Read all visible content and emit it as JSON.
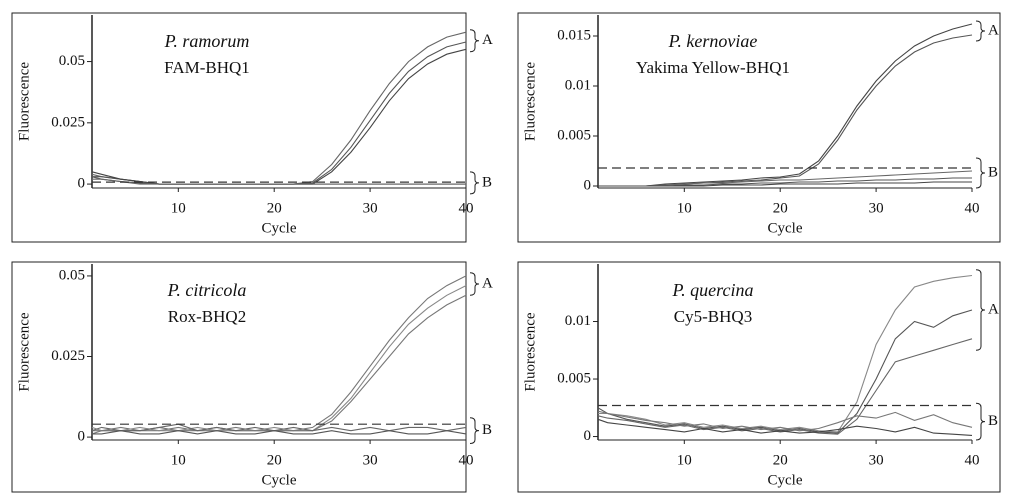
{
  "chart_data": [
    {
      "type": "line",
      "title": "P. ramorum",
      "subtitle": "FAM-BHQ1",
      "xlabel": "Cycle",
      "ylabel": "Fluorescence",
      "x": [
        1,
        2,
        4,
        6,
        8,
        10,
        12,
        14,
        16,
        18,
        20,
        22,
        24,
        26,
        28,
        30,
        32,
        34,
        36,
        38,
        40
      ],
      "xlim": [
        1,
        40
      ],
      "xticks": [
        10,
        20,
        30,
        40
      ],
      "ylim": [
        -0.0016,
        0.069
      ],
      "yticks": [
        0,
        0.025,
        0.05
      ],
      "threshold": 0.0008,
      "series": [
        {
          "color": "#666",
          "values": [
            0.004,
            0.003,
            0.002,
            0.001,
            0,
            0,
            0,
            0,
            0,
            0,
            0,
            0,
            0.001,
            0.008,
            0.018,
            0.03,
            0.041,
            0.05,
            0.056,
            0.06,
            0.062
          ]
        },
        {
          "color": "#555",
          "values": [
            0.003,
            0.003,
            0.002,
            0.001,
            0,
            0,
            0,
            0,
            0,
            0,
            0,
            0,
            0.0005,
            0.006,
            0.015,
            0.026,
            0.037,
            0.046,
            0.052,
            0.056,
            0.058
          ]
        },
        {
          "color": "#444",
          "values": [
            0.005,
            0.004,
            0.002,
            0.001,
            0,
            0,
            0,
            0,
            0,
            0,
            0,
            0,
            0,
            0.005,
            0.013,
            0.023,
            0.034,
            0.043,
            0.049,
            0.053,
            0.055
          ]
        },
        {
          "color": "#555",
          "values": [
            0.003,
            0.002,
            0.001,
            0.0005,
            0,
            0,
            0,
            0,
            0,
            0,
            0,
            0,
            0,
            0,
            0,
            0,
            0,
            0,
            0,
            0,
            0
          ]
        },
        {
          "color": "#666",
          "values": [
            0.002,
            0.002,
            0.001,
            0,
            0,
            0,
            0,
            0,
            0,
            0,
            0,
            0,
            0,
            0,
            0,
            0,
            0,
            0,
            0,
            0,
            0
          ]
        }
      ],
      "annotations": [
        {
          "text": "A",
          "range": [
            0.054,
            0.063
          ]
        },
        {
          "text": "B",
          "range": [
            -0.004,
            0.005
          ]
        }
      ]
    },
    {
      "type": "line",
      "title": "P. kernoviae",
      "subtitle": "Yakima Yellow-BHQ1",
      "xlabel": "Cycle",
      "ylabel": "Fluorescence",
      "x": [
        1,
        2,
        4,
        6,
        8,
        10,
        12,
        14,
        16,
        18,
        20,
        22,
        24,
        26,
        28,
        30,
        32,
        34,
        36,
        38,
        40
      ],
      "xlim": [
        1,
        40
      ],
      "xticks": [
        10,
        20,
        30,
        40
      ],
      "ylim": [
        -0.0002,
        0.0171
      ],
      "yticks": [
        0,
        0.005,
        0.01,
        0.015
      ],
      "threshold": 0.0018,
      "series": [
        {
          "color": "#444",
          "values": [
            0,
            0,
            0,
            0,
            0.0002,
            0.0003,
            0.0004,
            0.0005,
            0.0006,
            0.0008,
            0.0009,
            0.0012,
            0.0025,
            0.005,
            0.008,
            0.0105,
            0.0125,
            0.014,
            0.015,
            0.0157,
            0.0162
          ]
        },
        {
          "color": "#555",
          "values": [
            0,
            0,
            0,
            0,
            0.0001,
            0.0002,
            0.0003,
            0.0004,
            0.0005,
            0.0006,
            0.0008,
            0.001,
            0.0022,
            0.0046,
            0.0076,
            0.01,
            0.012,
            0.0134,
            0.0143,
            0.0148,
            0.0151
          ]
        },
        {
          "color": "#666",
          "values": [
            0,
            0,
            0,
            0,
            0.0001,
            0.0002,
            0.0003,
            0.0003,
            0.0004,
            0.0005,
            0.0006,
            0.0006,
            0.0007,
            0.0008,
            0.0009,
            0.001,
            0.0011,
            0.0012,
            0.0013,
            0.0014,
            0.0015
          ]
        },
        {
          "color": "#555",
          "values": [
            0,
            0,
            0,
            0,
            0,
            0.0001,
            0.0001,
            0.0002,
            0.0002,
            0.0003,
            0.0003,
            0.0004,
            0.0004,
            0.0005,
            0.0005,
            0.0006,
            0.0006,
            0.0007,
            0.0007,
            0.0008,
            0.0008
          ]
        },
        {
          "color": "#444",
          "values": [
            0,
            0,
            0,
            0,
            0,
            0,
            0,
            0.0001,
            0.0001,
            0.0001,
            0.0002,
            0.0002,
            0.0002,
            0.0002,
            0.0003,
            0.0003,
            0.0003,
            0.0003,
            0.0004,
            0.0004,
            0.0004
          ]
        }
      ],
      "annotations": [
        {
          "text": "A",
          "range": [
            0.0145,
            0.0165
          ]
        },
        {
          "text": "B",
          "range": [
            -0.0002,
            0.0028
          ]
        }
      ]
    },
    {
      "type": "line",
      "title": "P. citricola",
      "subtitle": "Rox-BHQ2",
      "xlabel": "Cycle",
      "ylabel": "Fluorescence",
      "x": [
        1,
        2,
        4,
        6,
        8,
        10,
        12,
        14,
        16,
        18,
        20,
        22,
        24,
        26,
        28,
        30,
        32,
        34,
        36,
        38,
        40
      ],
      "xlim": [
        1,
        40
      ],
      "xticks": [
        10,
        20,
        30,
        40
      ],
      "ylim": [
        -0.0009,
        0.0537
      ],
      "yticks": [
        0,
        0.025,
        0.05
      ],
      "threshold": 0.004,
      "series": [
        {
          "color": "#777",
          "values": [
            0.002,
            0.002,
            0.003,
            0.002,
            0.002,
            0.003,
            0.002,
            0.002,
            0.003,
            0.002,
            0.002,
            0.002,
            0.003,
            0.007,
            0.014,
            0.022,
            0.03,
            0.037,
            0.043,
            0.047,
            0.05
          ]
        },
        {
          "color": "#888",
          "values": [
            0.003,
            0.002,
            0.002,
            0.003,
            0.002,
            0.002,
            0.003,
            0.002,
            0.002,
            0.002,
            0.003,
            0.002,
            0.002,
            0.006,
            0.012,
            0.02,
            0.028,
            0.035,
            0.04,
            0.044,
            0.047
          ]
        },
        {
          "color": "#777",
          "values": [
            0.001,
            0.002,
            0.002,
            0.002,
            0.003,
            0.002,
            0.002,
            0.003,
            0.002,
            0.002,
            0.002,
            0.002,
            0.002,
            0.005,
            0.011,
            0.018,
            0.025,
            0.032,
            0.037,
            0.041,
            0.044
          ]
        },
        {
          "color": "#666",
          "values": [
            0.002,
            0.003,
            0.002,
            0.002,
            0.003,
            0.004,
            0.002,
            0.003,
            0.002,
            0.003,
            0.002,
            0.003,
            0.002,
            0.003,
            0.002,
            0.003,
            0.002,
            0.003,
            0.003,
            0.002,
            0.003
          ]
        },
        {
          "color": "#555",
          "values": [
            0.001,
            0.001,
            0.002,
            0.001,
            0.001,
            0.002,
            0.001,
            0.002,
            0.001,
            0.001,
            0.002,
            0.001,
            0.001,
            0.002,
            0.001,
            0.001,
            0.002,
            0.001,
            0.001,
            0.002,
            0.001
          ]
        }
      ],
      "annotations": [
        {
          "text": "A",
          "range": [
            0.044,
            0.051
          ]
        },
        {
          "text": "B",
          "range": [
            -0.002,
            0.006
          ]
        }
      ]
    },
    {
      "type": "line",
      "title": "P. quercina",
      "subtitle": "Cy5-BHQ3",
      "xlabel": "Cycle",
      "ylabel": "Fluorescence",
      "x": [
        1,
        2,
        4,
        6,
        8,
        10,
        12,
        14,
        16,
        18,
        20,
        22,
        24,
        26,
        28,
        30,
        32,
        34,
        36,
        38,
        40
      ],
      "xlim": [
        1,
        40
      ],
      "xticks": [
        10,
        20,
        30,
        40
      ],
      "ylim": [
        -0.0003,
        0.015
      ],
      "yticks": [
        0,
        0.005,
        0.01
      ],
      "threshold": 0.0027,
      "series": [
        {
          "color": "#888",
          "values": [
            0.002,
            0.002,
            0.0018,
            0.0015,
            0.001,
            0.0012,
            0.0008,
            0.001,
            0.0007,
            0.0009,
            0.0006,
            0.0008,
            0.0005,
            0.0004,
            0.003,
            0.008,
            0.011,
            0.013,
            0.0135,
            0.0138,
            0.014
          ]
        },
        {
          "color": "#555",
          "values": [
            0.0025,
            0.002,
            0.0015,
            0.0012,
            0.0009,
            0.0011,
            0.0007,
            0.0009,
            0.0006,
            0.0008,
            0.0005,
            0.0007,
            0.0004,
            0.0003,
            0.002,
            0.005,
            0.0085,
            0.01,
            0.0095,
            0.0105,
            0.011
          ]
        },
        {
          "color": "#666",
          "values": [
            0.0018,
            0.0016,
            0.0014,
            0.0011,
            0.0008,
            0.001,
            0.0006,
            0.0008,
            0.0005,
            0.0007,
            0.0004,
            0.0006,
            0.0003,
            0.0002,
            0.0015,
            0.004,
            0.0065,
            0.007,
            0.0075,
            0.008,
            0.0085
          ]
        },
        {
          "color": "#777",
          "values": [
            0.0022,
            0.002,
            0.0017,
            0.0014,
            0.0012,
            0.0009,
            0.0011,
            0.0007,
            0.0009,
            0.0006,
            0.0008,
            0.0005,
            0.0007,
            0.0012,
            0.0018,
            0.0016,
            0.0021,
            0.0014,
            0.0019,
            0.0012,
            0.0008
          ]
        },
        {
          "color": "#444",
          "values": [
            0.0015,
            0.0012,
            0.001,
            0.0008,
            0.0006,
            0.0004,
            0.0007,
            0.0004,
            0.0006,
            0.0003,
            0.0005,
            0.0003,
            0.0004,
            0.0006,
            0.0009,
            0.0007,
            0.0004,
            0.0008,
            0.0003,
            0.0002,
            0.0001
          ]
        }
      ],
      "annotations": [
        {
          "text": "A",
          "range": [
            0.0075,
            0.0145
          ]
        },
        {
          "text": "B",
          "range": [
            -0.0003,
            0.0029
          ]
        }
      ]
    }
  ]
}
